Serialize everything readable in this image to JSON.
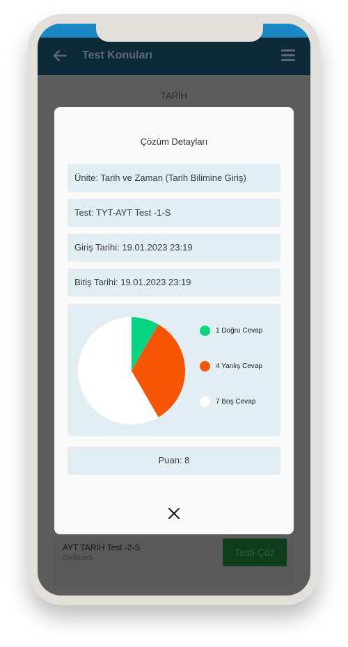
{
  "appbar": {
    "title": "Test Konuları",
    "back_icon": "arrow-left-icon",
    "menu_icon": "hamburger-menu-icon"
  },
  "section": {
    "title": "TARİH"
  },
  "background_card": {
    "title": "AYT TARİH Test -2-S",
    "status": "Girilmedi",
    "button_label": "Testi Çöz"
  },
  "modal": {
    "title": "Çözüm Detayları",
    "rows": [
      {
        "text": "Ünite: Tarih ve Zaman (Tarih Bilimine Giriş)"
      },
      {
        "text": "Test: TYT-AYT Test -1-S"
      },
      {
        "text": "Giriş Tarihi: 19.01.2023 23:19"
      },
      {
        "text": "Bitiş Tarihi: 19.01.2023 23:19"
      }
    ],
    "score": "Puan: 8",
    "close_icon": "close-icon"
  },
  "chart_data": {
    "type": "pie",
    "slices": [
      {
        "label": "1 Doğru Cevap",
        "value": 1,
        "color": "#06d483"
      },
      {
        "label": "4 Yanlış Cevap",
        "value": 4,
        "color": "#f55505"
      },
      {
        "label": "7 Boş Cevap",
        "value": 7,
        "color": "#ffffff"
      }
    ]
  },
  "colors": {
    "appbar": "#0c2a38",
    "status": "#1b88c4",
    "row_bg": "#e3edf4"
  }
}
